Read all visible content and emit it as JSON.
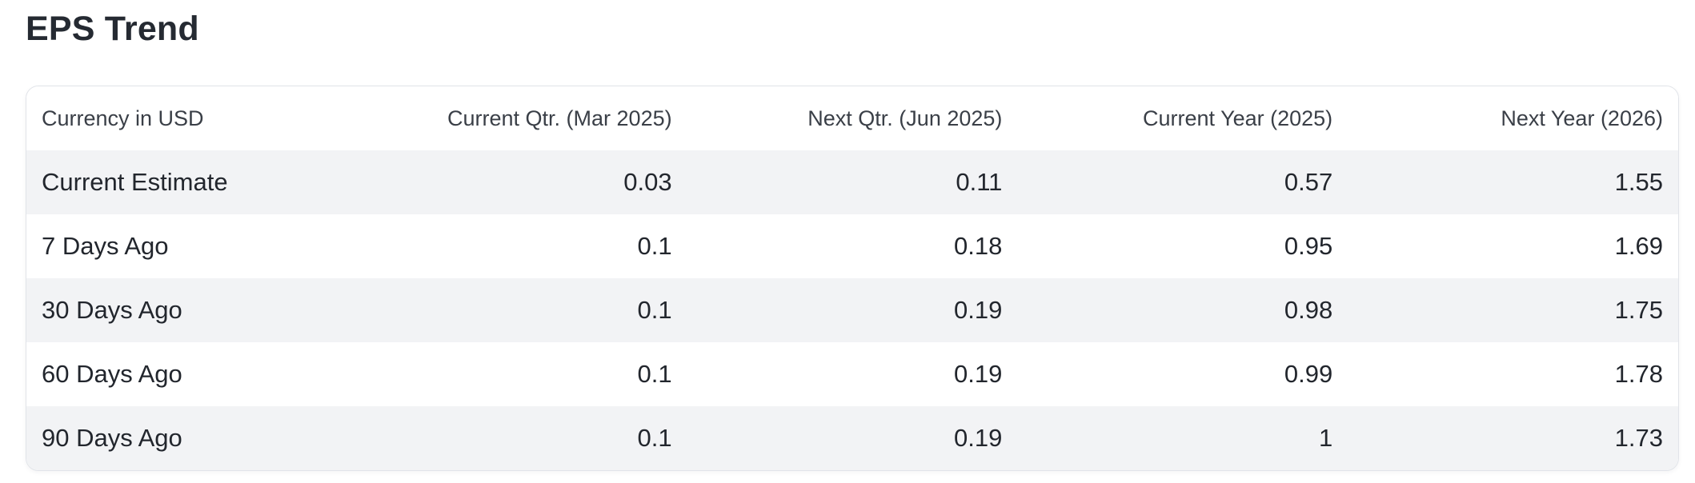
{
  "section": {
    "title": "EPS Trend"
  },
  "table": {
    "columns": [
      "Currency in USD",
      "Current Qtr. (Mar 2025)",
      "Next Qtr. (Jun 2025)",
      "Current Year (2025)",
      "Next Year (2026)"
    ],
    "rows": [
      {
        "label": "Current Estimate",
        "values": [
          "0.03",
          "0.11",
          "0.57",
          "1.55"
        ]
      },
      {
        "label": "7 Days Ago",
        "values": [
          "0.1",
          "0.18",
          "0.95",
          "1.69"
        ]
      },
      {
        "label": "30 Days Ago",
        "values": [
          "0.1",
          "0.19",
          "0.98",
          "1.75"
        ]
      },
      {
        "label": "60 Days Ago",
        "values": [
          "0.1",
          "0.19",
          "0.99",
          "1.78"
        ]
      },
      {
        "label": "90 Days Ago",
        "values": [
          "0.1",
          "0.19",
          "1",
          "1.73"
        ]
      }
    ]
  },
  "colors": {
    "heading_text": "#252a32",
    "header_text": "#3a3f47",
    "body_text": "#22262d",
    "row_stripe": "#f2f3f5",
    "card_border": "#e1e4e9",
    "background": "#ffffff"
  }
}
